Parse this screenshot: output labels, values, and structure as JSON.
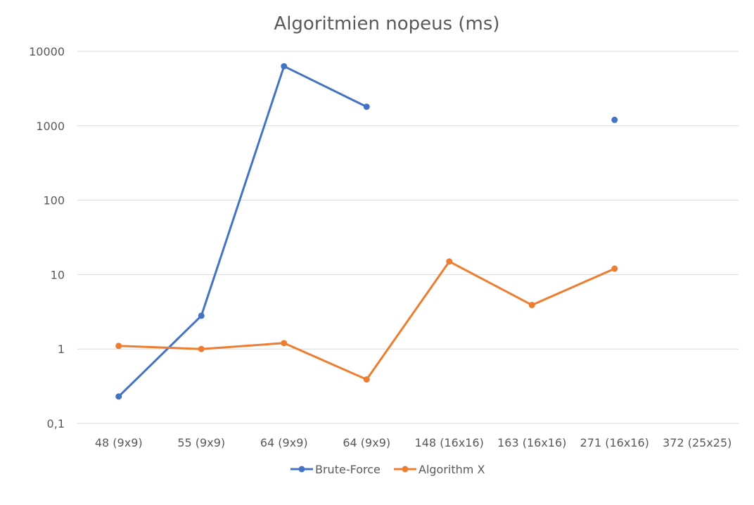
{
  "chart_data": {
    "type": "line",
    "title": "Algoritmien nopeus (ms)",
    "xlabel": "",
    "ylabel": "",
    "yscale": "log",
    "ylim": [
      0.1,
      10000
    ],
    "yticks": [
      0.1,
      1,
      10,
      100,
      1000,
      10000
    ],
    "ytick_labels": [
      "0,1",
      "1",
      "10",
      "100",
      "1000",
      "10000"
    ],
    "grid": true,
    "legend_position": "bottom",
    "categories": [
      "48 (9x9)",
      "55 (9x9)",
      "64 (9x9)",
      "64 (9x9)",
      "148 (16x16)",
      "163 (16x16)",
      "271 (16x16)",
      "372 (25x25)"
    ],
    "series": [
      {
        "name": "Brute-Force",
        "color": "#4472c4",
        "values": [
          0.23,
          2.8,
          6300,
          1800,
          null,
          null,
          1200,
          null
        ]
      },
      {
        "name": "Algorithm X",
        "color": "#ed7d31",
        "values": [
          1.1,
          1.0,
          1.2,
          0.39,
          15,
          3.9,
          12,
          null
        ]
      }
    ]
  }
}
